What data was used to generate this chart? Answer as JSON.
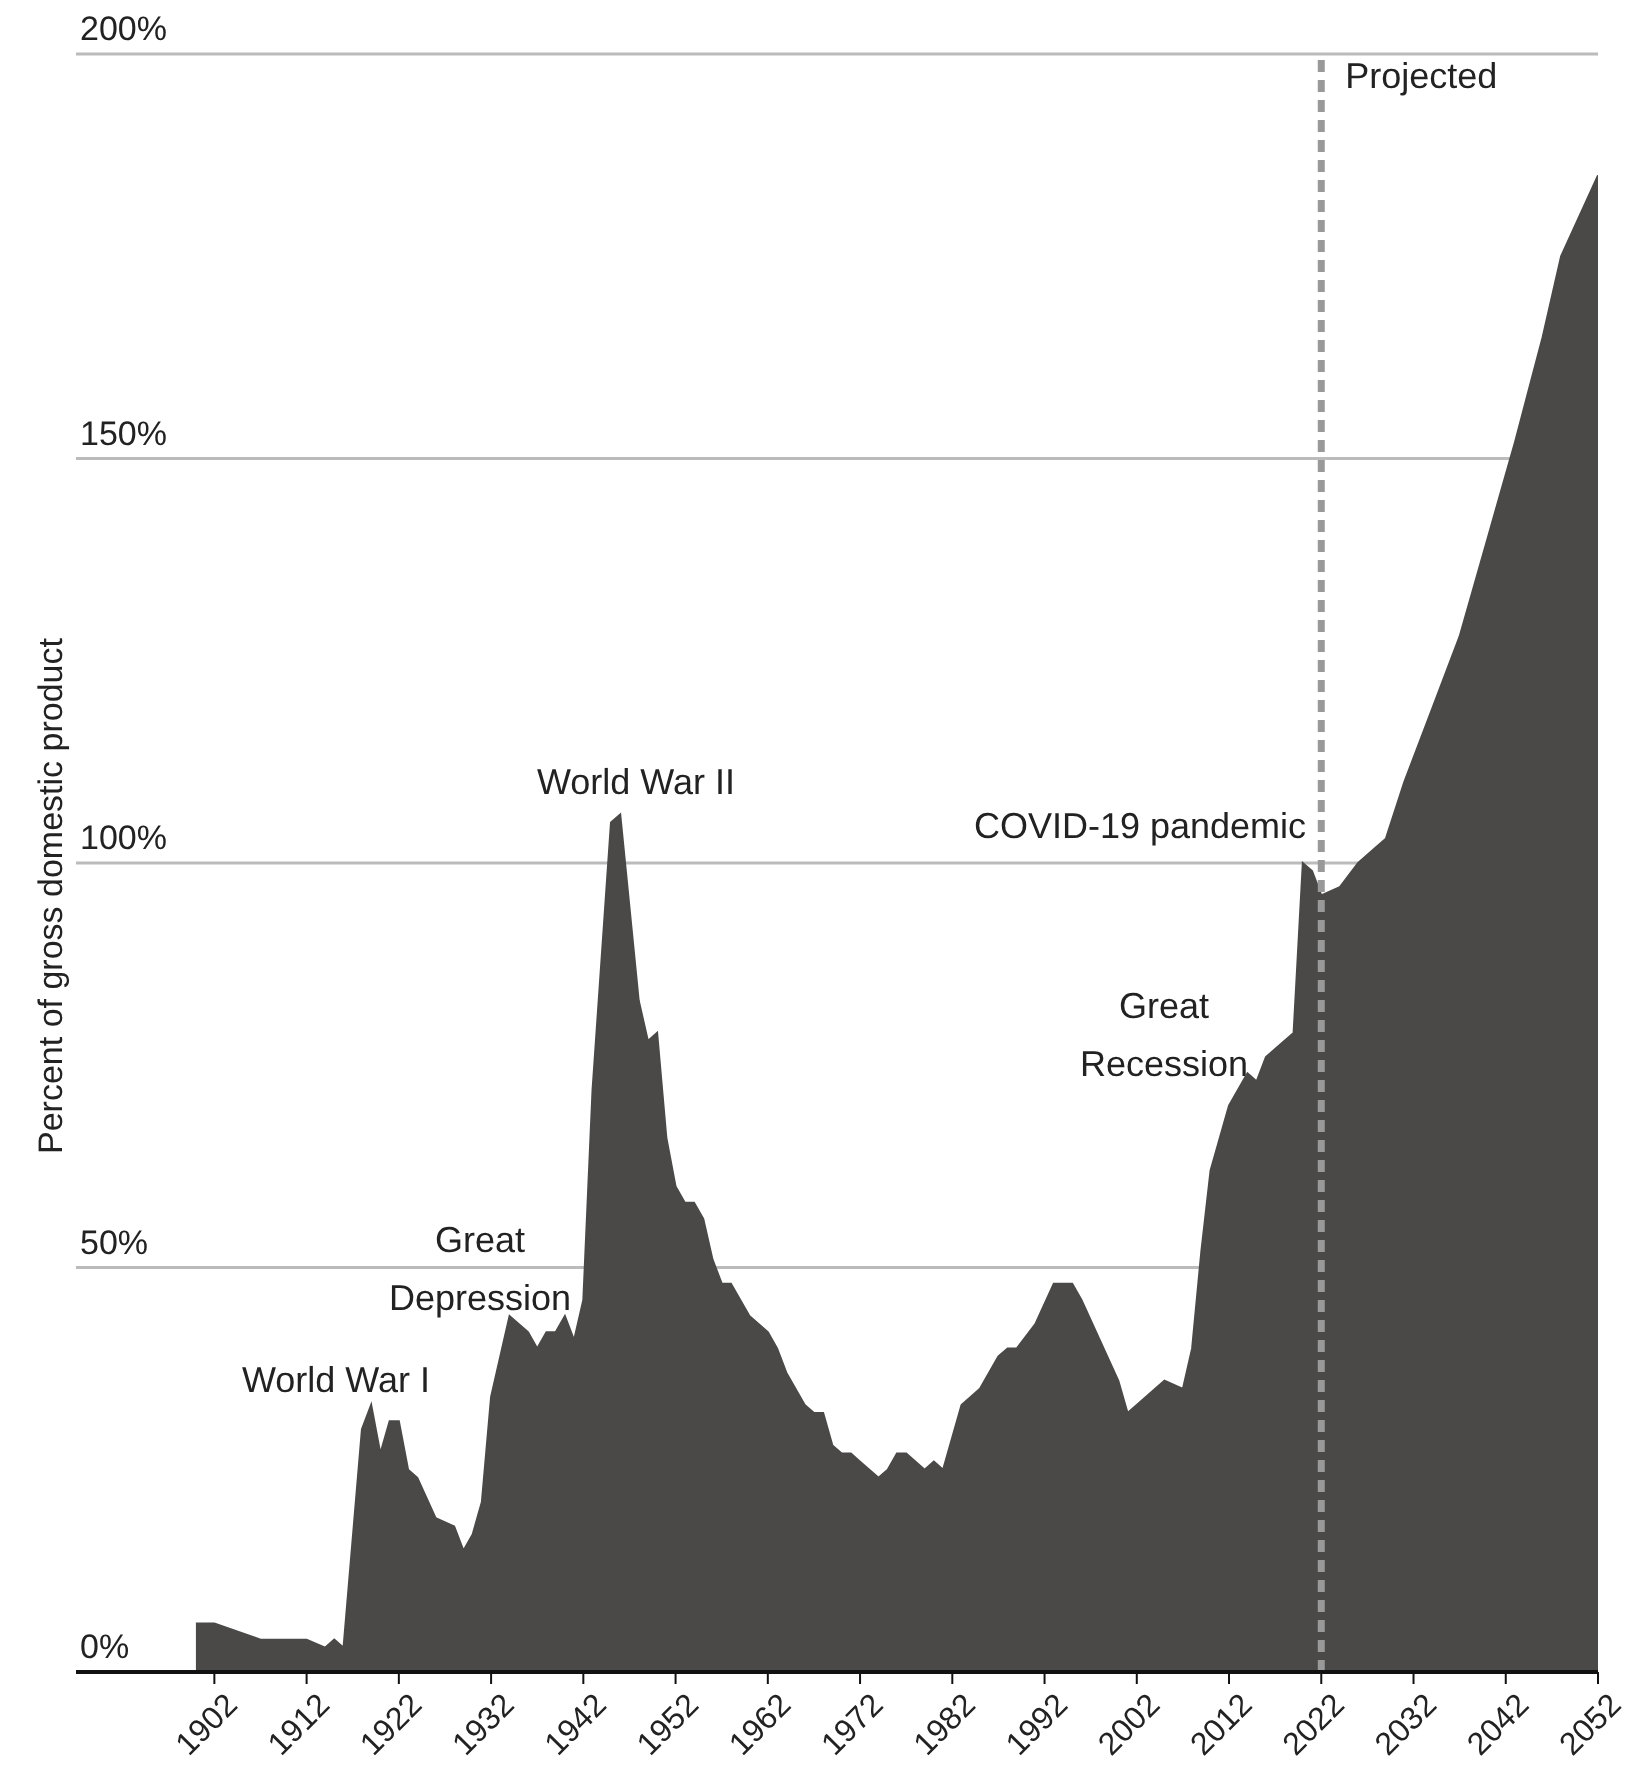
{
  "chart_data": {
    "type": "area",
    "ylabel": "Percent of gross domestic product",
    "x": [
      1900,
      1902,
      1907,
      1909,
      1912,
      1914,
      1915,
      1916,
      1918,
      1919,
      1920,
      1921,
      1922,
      1923,
      1924,
      1926,
      1928,
      1929,
      1930,
      1931,
      1932,
      1934,
      1936,
      1937,
      1938,
      1939,
      1940,
      1941,
      1942,
      1943,
      1945,
      1946,
      1948,
      1949,
      1950,
      1951,
      1952,
      1953,
      1954,
      1955,
      1956,
      1957,
      1958,
      1960,
      1962,
      1963,
      1964,
      1966,
      1967,
      1968,
      1969,
      1970,
      1971,
      1972,
      1974,
      1975,
      1976,
      1977,
      1979,
      1980,
      1981,
      1983,
      1985,
      1987,
      1988,
      1989,
      1991,
      1993,
      1995,
      1996,
      1998,
      2000,
      2001,
      2002,
      2004,
      2005,
      2007,
      2008,
      2009,
      2010,
      2012,
      2014,
      2015,
      2016,
      2017,
      2019,
      2020,
      2021,
      2022,
      2024,
      2026,
      2028,
      2029,
      2031,
      2034,
      2037,
      2040,
      2043,
      2046,
      2048,
      2052
    ],
    "series": [
      {
        "color": "#4a4948",
        "values": [
          6,
          6,
          4,
          4,
          4,
          3,
          4,
          3,
          30,
          33,
          27,
          31,
          31,
          25,
          24,
          19,
          18,
          15,
          17,
          21,
          34,
          44,
          42,
          40,
          42,
          42,
          44,
          41,
          46,
          72,
          105,
          106,
          83,
          78,
          79,
          66,
          60,
          58,
          58,
          56,
          51,
          48,
          48,
          44,
          42,
          40,
          37,
          33,
          32,
          32,
          28,
          27,
          27,
          26,
          24,
          25,
          27,
          27,
          25,
          26,
          25,
          33,
          35,
          39,
          40,
          40,
          43,
          48,
          48,
          46,
          41,
          36,
          32,
          33,
          35,
          36,
          35,
          40,
          52,
          62,
          70,
          74,
          73,
          76,
          77,
          79,
          100,
          99,
          96,
          97,
          100,
          102,
          103,
          110,
          119,
          128,
          140,
          152,
          165,
          175,
          185
        ]
      }
    ],
    "xlim": [
      1887,
      2052
    ],
    "xticks": [
      1902,
      1912,
      1922,
      1932,
      1942,
      1952,
      1962,
      1972,
      1982,
      1992,
      2002,
      2012,
      2022,
      2032,
      2042,
      2052
    ],
    "ylim": [
      0,
      200
    ],
    "yticks": [
      {
        "value": 0,
        "label": "0%"
      },
      {
        "value": 50,
        "label": "50%"
      },
      {
        "value": 100,
        "label": "100%"
      },
      {
        "value": 150,
        "label": "150%"
      },
      {
        "value": 200,
        "label": "200%"
      }
    ],
    "grid": "y",
    "legend": false,
    "ref_lines": [
      {
        "axis": "x",
        "value": 2022,
        "label": "Projected",
        "color": "#999999",
        "line_style": "dashed"
      }
    ],
    "annotations": [
      "World War I",
      "Great\nDepression",
      "World War II",
      "COVID-19 pandemic",
      "Great\nRecession"
    ]
  }
}
